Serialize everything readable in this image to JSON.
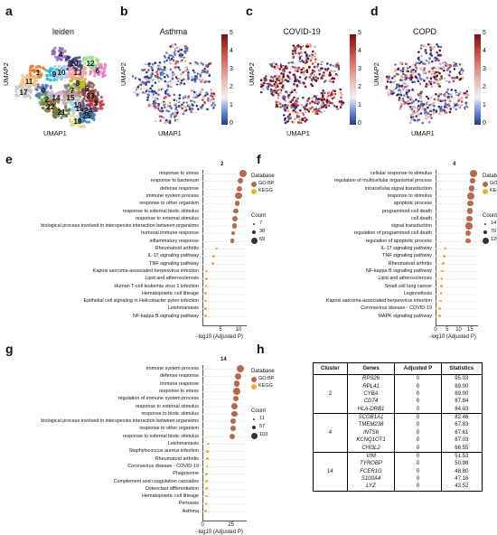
{
  "panels": {
    "a": {
      "letter": "a",
      "title": "leiden",
      "xlabel": "UMAP1",
      "ylabel": "UMAP2",
      "cluster_labels": [
        "0",
        "1",
        "2",
        "3",
        "4",
        "5",
        "6",
        "7",
        "8",
        "9",
        "10",
        "11",
        "12",
        "13",
        "14",
        "15",
        "16",
        "17",
        "18",
        "19",
        "20",
        "21",
        "22",
        "23",
        "24",
        "25"
      ]
    },
    "b": {
      "letter": "b",
      "title": "Asthma",
      "xlabel": "UMAP1",
      "ylabel": "UMAP2",
      "ticks": [
        "0",
        "1",
        "2",
        "3",
        "4",
        "5"
      ]
    },
    "c": {
      "letter": "c",
      "title": "COVID-19",
      "xlabel": "UMAP1",
      "ylabel": "UMAP2",
      "ticks": [
        "0",
        "1",
        "2",
        "3",
        "4",
        "5"
      ]
    },
    "d": {
      "letter": "d",
      "title": "COPD",
      "xlabel": "UMAP1",
      "ylabel": "UMAP2",
      "ticks": [
        "0",
        "1",
        "2",
        "3",
        "4",
        "5"
      ]
    },
    "e": {
      "letter": "e"
    },
    "f": {
      "letter": "f"
    },
    "g": {
      "letter": "g"
    },
    "h": {
      "letter": "h"
    }
  },
  "colors": {
    "gobp": "#b5694f",
    "kegg": "#e8b32a",
    "cmap_low": "#1f3a8a",
    "cmap_mid": "#f0f0f0",
    "cmap_high": "#7a0f12"
  },
  "chart_data": [
    {
      "id": "e",
      "type": "scatter",
      "title": "2",
      "xlabel": "−log10 (Adjusted P)",
      "xticks": [
        "5",
        "10"
      ],
      "xlim": [
        0,
        12
      ],
      "legend_database_title": "Database",
      "legend_database": [
        "GO:BP",
        "KEGG"
      ],
      "legend_count_title": "Count",
      "legend_count": [
        "7",
        "38",
        "69"
      ],
      "terms": [
        "response to stress",
        "response to bacterium",
        "defense response",
        "immune system process",
        "response to other organism",
        "response to external biotic stimulus",
        "response to external stimulus",
        "biological process involved in interspecies interaction between organisms",
        "humoral immune response",
        "inflammatory response",
        "Rheumatoid arthritis",
        "IL-17 signaling pathway",
        "TNF signaling pathway",
        "Kaposi sarcoma-associated herpesvirus infection",
        "Lipid and atherosclerosis",
        "Human T-cell leukemia virus 1 infection",
        "Hematopoietic cell lineage",
        "Epithelial cell signaling in Helicobacter pylori infection",
        "Leishmaniasis",
        "NF-kappa B signaling pathway"
      ],
      "x": [
        11.2,
        10.6,
        10.3,
        10.0,
        9.6,
        9.3,
        9.0,
        8.9,
        8.6,
        8.3,
        3.8,
        3.2,
        2.9,
        1.2,
        1.1,
        1.0,
        0.9,
        0.9,
        0.8,
        0.8
      ],
      "db": [
        "GO:BP",
        "GO:BP",
        "GO:BP",
        "GO:BP",
        "GO:BP",
        "GO:BP",
        "GO:BP",
        "GO:BP",
        "GO:BP",
        "GO:BP",
        "KEGG",
        "KEGG",
        "KEGG",
        "KEGG",
        "KEGG",
        "KEGG",
        "KEGG",
        "KEGG",
        "KEGG",
        "KEGG"
      ],
      "count": [
        69,
        45,
        48,
        60,
        42,
        40,
        52,
        42,
        25,
        30,
        10,
        9,
        9,
        9,
        9,
        9,
        8,
        8,
        8,
        8
      ]
    },
    {
      "id": "f",
      "type": "scatter",
      "title": "4",
      "xlabel": "−log10 (Adjusted P)",
      "xticks": [
        "0",
        "5",
        "10",
        "15"
      ],
      "xlim": [
        0,
        18
      ],
      "legend_database_title": "Database",
      "legend_database": [
        "GO:BP",
        "KEGG"
      ],
      "legend_count_title": "Count",
      "legend_count": [
        "14",
        "70",
        "126"
      ],
      "terms": [
        "cellular response to stimulus",
        "regulation of multicellular organismal process",
        "intracellular signal transduction",
        "response to stimulus",
        "apoptotic process",
        "programmed cell death",
        "cell death",
        "signal transduction",
        "regulation of programmed cell death",
        "regulation of apoptotic process",
        "IL-17 signaling pathway",
        "TNF signaling pathway",
        "Rheumatoid arthritis",
        "NF-kappa B signaling pathway",
        "Lipid and atherosclerosis",
        "Small cell lung cancer",
        "Legionellosis",
        "Kaposi sarcoma-associated herpesvirus infection",
        "Coronavirus disease - COVID-19",
        "MAPK signaling pathway"
      ],
      "x": [
        16.5,
        16.0,
        15.6,
        15.3,
        15.0,
        14.8,
        14.7,
        14.5,
        14.2,
        14.0,
        4.0,
        3.7,
        3.4,
        3.0,
        2.7,
        2.5,
        2.3,
        2.1,
        1.9,
        1.7
      ],
      "db": [
        "GO:BP",
        "GO:BP",
        "GO:BP",
        "GO:BP",
        "GO:BP",
        "GO:BP",
        "GO:BP",
        "GO:BP",
        "GO:BP",
        "GO:BP",
        "KEGG",
        "KEGG",
        "KEGG",
        "KEGG",
        "KEGG",
        "KEGG",
        "KEGG",
        "KEGG",
        "KEGG",
        "KEGG"
      ],
      "count": [
        126,
        80,
        90,
        120,
        95,
        95,
        95,
        110,
        80,
        75,
        16,
        16,
        16,
        16,
        16,
        14,
        14,
        16,
        16,
        16
      ]
    },
    {
      "id": "g",
      "type": "scatter",
      "title": "14",
      "xlabel": "−log10 (Adjusted P)",
      "xticks": [
        "0",
        "25"
      ],
      "xlim": [
        0,
        38
      ],
      "legend_database_title": "Database",
      "legend_database": [
        "GO:BP",
        "KEGG"
      ],
      "legend_count_title": "Count",
      "legend_count": [
        "11",
        "57",
        "103"
      ],
      "terms": [
        "immune system process",
        "defense response",
        "immune response",
        "response to stress",
        "regulation of immune system process",
        "response to external stimulus",
        "response to biotic stimulus",
        "biological process involved in interspecies interaction between organisms",
        "response to other organism",
        "response to external biotic stimulus",
        "Leishmaniasis",
        "Staphylococcus aureus infection",
        "Rheumatoid arthritis",
        "Coronavirus disease - COVID-19",
        "Phagosome",
        "Complement and coagulation cascades",
        "Osteoclast differentiation",
        "Hematopoietic cell lineage",
        "Pertussis",
        "Asthma"
      ],
      "x": [
        33,
        31,
        30,
        30,
        29,
        28,
        28,
        27,
        27,
        26,
        5,
        4.5,
        4.3,
        4.0,
        3.8,
        3.6,
        3.5,
        3.4,
        3.2,
        3.0
      ],
      "db": [
        "GO:BP",
        "GO:BP",
        "GO:BP",
        "GO:BP",
        "GO:BP",
        "GO:BP",
        "GO:BP",
        "GO:BP",
        "GO:BP",
        "GO:BP",
        "KEGG",
        "KEGG",
        "KEGG",
        "KEGG",
        "KEGG",
        "KEGG",
        "KEGG",
        "KEGG",
        "KEGG",
        "KEGG"
      ],
      "count": [
        103,
        90,
        80,
        95,
        70,
        85,
        75,
        70,
        70,
        70,
        12,
        12,
        12,
        12,
        12,
        11,
        11,
        11,
        11,
        11
      ]
    }
  ],
  "table": {
    "headers": [
      "Cluster",
      "Genes",
      "Adjusted P",
      "Statistics"
    ],
    "groups": [
      {
        "cluster": "2",
        "rows": [
          [
            "RPS26",
            "0",
            "95.03"
          ],
          [
            "RPL41",
            "0",
            "89.00"
          ],
          [
            "CYBA",
            "0",
            "89.00"
          ],
          [
            "CD74",
            "0",
            "87.84"
          ],
          [
            "HLA-DRB1",
            "0",
            "84.03"
          ]
        ]
      },
      {
        "cluster": "4",
        "rows": [
          [
            "SCGB1A1",
            "0",
            "82.46"
          ],
          [
            "TMEM238",
            "0",
            "67.83"
          ],
          [
            "INTS6",
            "0",
            "67.61"
          ],
          [
            "KCNQ1OT1",
            "0",
            "67.03"
          ],
          [
            "CHI3L2",
            "0",
            "66.55"
          ]
        ]
      },
      {
        "cluster": "14",
        "rows": [
          [
            "VIM",
            "0",
            "51.53"
          ],
          [
            "TYROBP",
            "0",
            "50.98"
          ],
          [
            "FCER1G",
            "0",
            "48.80"
          ],
          [
            "S100A4",
            "0",
            "47.16"
          ],
          [
            "LYZ",
            "0",
            "43.52"
          ]
        ]
      }
    ]
  }
}
